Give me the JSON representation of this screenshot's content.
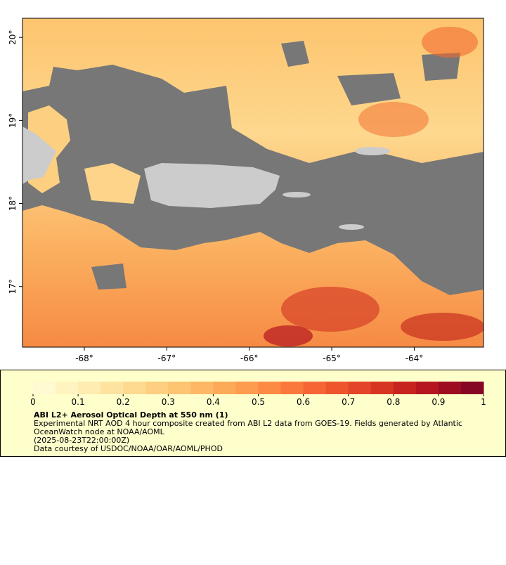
{
  "map": {
    "lon_range": [
      -68.75,
      -63.16
    ],
    "lat_range": [
      16.27,
      20.23
    ],
    "lon_ticks": [
      {
        "value": -68,
        "label": "-68°"
      },
      {
        "value": -67,
        "label": "-67°"
      },
      {
        "value": -66,
        "label": "-66°"
      },
      {
        "value": -65,
        "label": "-65°"
      },
      {
        "value": -64,
        "label": "-64°"
      }
    ],
    "lat_ticks": [
      {
        "value": 17,
        "label": "17°"
      },
      {
        "value": 18,
        "label": "18°"
      },
      {
        "value": 19,
        "label": "19°"
      },
      {
        "value": 20,
        "label": "20°"
      }
    ]
  },
  "colorbar": {
    "range": [
      0,
      1
    ],
    "ticks": [
      0,
      0.1,
      0.2,
      0.3,
      0.4,
      0.5,
      0.6,
      0.7,
      0.8,
      0.9,
      1
    ],
    "colors": [
      "#fffad2",
      "#fff3c0",
      "#ffecb0",
      "#fee3a0",
      "#fed990",
      "#fecf80",
      "#fec472",
      "#feb865",
      "#fdaa58",
      "#fd9b4e",
      "#fc8a44",
      "#fa783c",
      "#f56634",
      "#ee552d",
      "#e44427",
      "#d83422",
      "#c8241f",
      "#b5161f",
      "#9e0c22",
      "#850524"
    ]
  },
  "legend": {
    "title": "ABI L2+ Aerosol Optical Depth at 550 nm (1)",
    "description_lines": [
      "Experimental NRT AOD 4 hour composite created from ABI L2 data from GOES-19. Fields generated by Atlantic",
      "OceanWatch node at NOAA/AOML"
    ],
    "time": "(2025-08-23T22:00:00Z)",
    "credit": "Data courtesy of USDOC/NOAA/OAR/AOML/PHOD"
  }
}
